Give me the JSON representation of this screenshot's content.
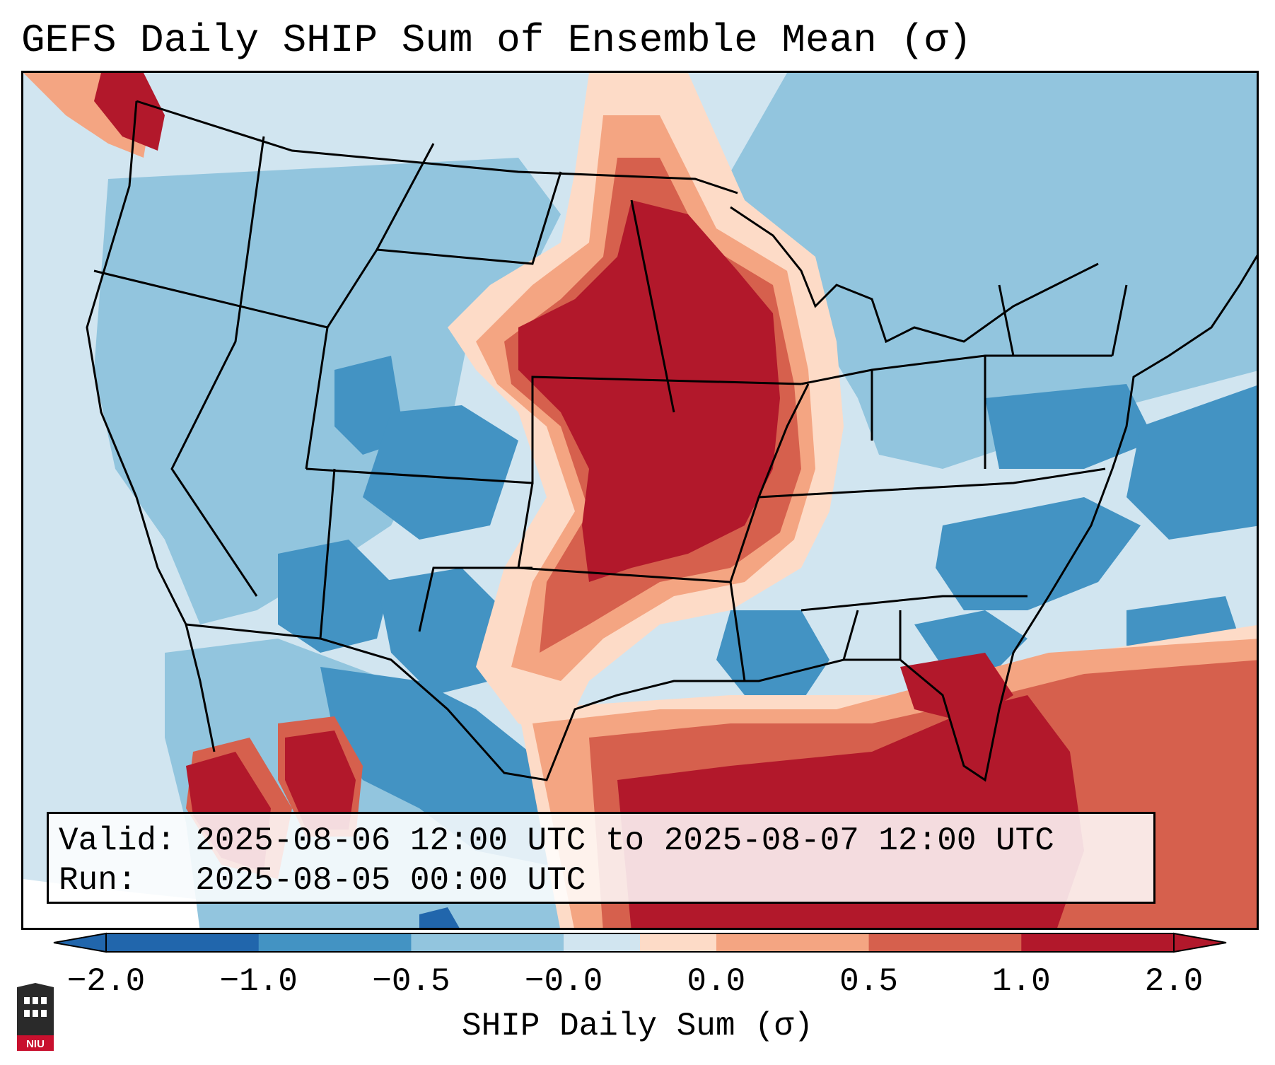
{
  "title": "GEFS Daily SHIP Sum of Ensemble Mean (σ)",
  "info": {
    "valid_label": "Valid:",
    "valid_value": "2025-08-06 12:00 UTC to 2025-08-07 12:00 UTC",
    "run_label": "Run:",
    "run_value": "2025-08-05 00:00 UTC"
  },
  "colorbar": {
    "label": "SHIP Daily Sum (σ)",
    "ticks": [
      "−2.0",
      "−1.0",
      "−0.5",
      "−0.0",
      "0.0",
      "0.5",
      "1.0",
      "2.0"
    ],
    "colors": [
      "#2166ac",
      "#4393c3",
      "#92c5de",
      "#d1e5f0",
      "#fddbc7",
      "#f4a582",
      "#d6604d",
      "#b2182b"
    ]
  },
  "logo": {
    "text": "NIU",
    "icon": "niu-tower-logo"
  }
}
